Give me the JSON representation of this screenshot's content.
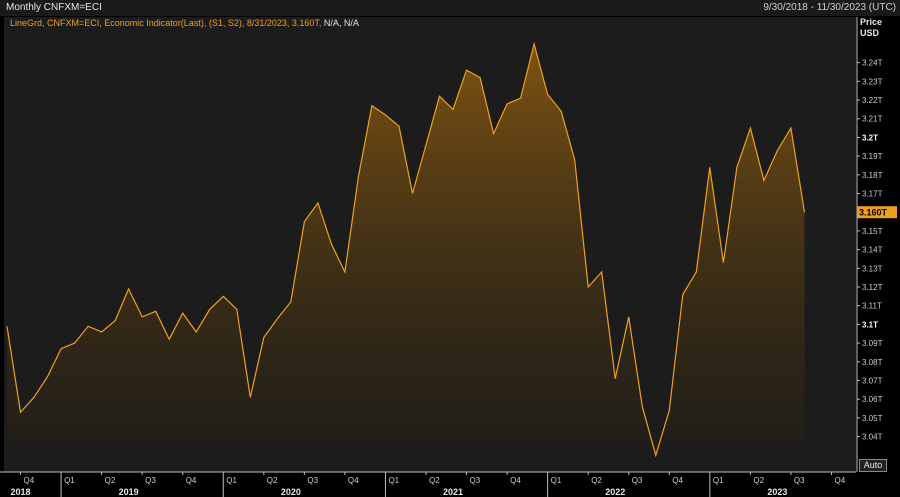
{
  "header": {
    "title": "Monthly CNFXM=ECI",
    "date_range": "9/30/2018 - 11/30/2023 (UTC)"
  },
  "legend": {
    "text": "LineGrd, CNFXM=ECI, Economic Indicator(Last), (S1, S2), 8/31/2023, 3.160T,",
    "na": "N/A, N/A"
  },
  "axis": {
    "title_line1": "Price",
    "title_line2": "USD",
    "auto_label": "Auto"
  },
  "colors": {
    "line": "#f0a020",
    "fill_top": "#8a5a10",
    "plot_bg": "#1c1c1c",
    "last_tag_bg": "#f0a020"
  },
  "chart_data": {
    "type": "area",
    "ylim": [
      3.028,
      3.258
    ],
    "y_ticks": [
      "3.04T",
      "3.05T",
      "3.06T",
      "3.07T",
      "3.08T",
      "3.09T",
      "3.1T",
      "3.11T",
      "3.12T",
      "3.13T",
      "3.14T",
      "3.15T",
      "3.16T",
      "3.17T",
      "3.18T",
      "3.19T",
      "3.2T",
      "3.21T",
      "3.22T",
      "3.23T",
      "3.24T"
    ],
    "y_tick_values": [
      3.04,
      3.05,
      3.06,
      3.07,
      3.08,
      3.09,
      3.1,
      3.11,
      3.12,
      3.13,
      3.14,
      3.15,
      3.16,
      3.17,
      3.18,
      3.19,
      3.2,
      3.21,
      3.22,
      3.23,
      3.24
    ],
    "y_tick_bold": [
      "3.1T",
      "3.2T"
    ],
    "last_value_label": "3.160T",
    "last_value": 3.16,
    "x_start": "2018-09",
    "x_end": "2023-11",
    "x_quarter_labels": [
      {
        "label": "Q4",
        "month": "2018-10"
      },
      {
        "label": "Q1",
        "month": "2019-01"
      },
      {
        "label": "Q2",
        "month": "2019-04"
      },
      {
        "label": "Q3",
        "month": "2019-07"
      },
      {
        "label": "Q4",
        "month": "2019-10"
      },
      {
        "label": "Q1",
        "month": "2020-01"
      },
      {
        "label": "Q2",
        "month": "2020-04"
      },
      {
        "label": "Q3",
        "month": "2020-07"
      },
      {
        "label": "Q4",
        "month": "2020-10"
      },
      {
        "label": "Q1",
        "month": "2021-01"
      },
      {
        "label": "Q2",
        "month": "2021-04"
      },
      {
        "label": "Q3",
        "month": "2021-07"
      },
      {
        "label": "Q4",
        "month": "2021-10"
      },
      {
        "label": "Q1",
        "month": "2022-01"
      },
      {
        "label": "Q2",
        "month": "2022-04"
      },
      {
        "label": "Q3",
        "month": "2022-07"
      },
      {
        "label": "Q4",
        "month": "2022-10"
      },
      {
        "label": "Q1",
        "month": "2023-01"
      },
      {
        "label": "Q2",
        "month": "2023-04"
      },
      {
        "label": "Q3",
        "month": "2023-07"
      },
      {
        "label": "Q4",
        "month": "2023-10"
      }
    ],
    "year_labels": [
      {
        "label": "2018",
        "month": "2018-10"
      },
      {
        "label": "2019",
        "month": "2019-06"
      },
      {
        "label": "2020",
        "month": "2020-06"
      },
      {
        "label": "2021",
        "month": "2021-06"
      },
      {
        "label": "2022",
        "month": "2022-06"
      },
      {
        "label": "2023",
        "month": "2023-06"
      }
    ],
    "series": [
      {
        "dates": [
          "2018-09",
          "2018-10",
          "2018-11",
          "2018-12",
          "2019-01",
          "2019-02",
          "2019-03",
          "2019-04",
          "2019-05",
          "2019-06",
          "2019-07",
          "2019-08",
          "2019-09",
          "2019-10",
          "2019-11",
          "2019-12",
          "2020-01",
          "2020-02",
          "2020-03",
          "2020-04",
          "2020-05",
          "2020-06",
          "2020-07",
          "2020-08",
          "2020-09",
          "2020-10",
          "2020-11",
          "2020-12",
          "2021-01",
          "2021-02",
          "2021-03",
          "2021-04",
          "2021-05",
          "2021-06",
          "2021-07",
          "2021-08",
          "2021-09",
          "2021-10",
          "2021-11",
          "2021-12",
          "2022-01",
          "2022-02",
          "2022-03",
          "2022-04",
          "2022-05",
          "2022-06",
          "2022-07",
          "2022-08",
          "2022-09",
          "2022-10",
          "2022-11",
          "2022-12",
          "2023-01",
          "2023-02",
          "2023-03",
          "2023-04",
          "2023-05",
          "2023-06",
          "2023-07",
          "2023-08"
        ],
        "values": [
          3.099,
          3.053,
          3.061,
          3.072,
          3.087,
          3.09,
          3.099,
          3.096,
          3.102,
          3.119,
          3.104,
          3.107,
          3.092,
          3.106,
          3.096,
          3.108,
          3.115,
          3.108,
          3.061,
          3.093,
          3.103,
          3.112,
          3.155,
          3.165,
          3.143,
          3.128,
          3.179,
          3.217,
          3.212,
          3.206,
          3.17,
          3.196,
          3.222,
          3.215,
          3.236,
          3.232,
          3.202,
          3.218,
          3.221,
          3.25,
          3.223,
          3.214,
          3.188,
          3.12,
          3.128,
          3.071,
          3.104,
          3.056,
          3.03,
          3.054,
          3.116,
          3.128,
          3.184,
          3.133,
          3.184,
          3.205,
          3.177,
          3.193,
          3.205,
          3.16
        ]
      }
    ]
  }
}
